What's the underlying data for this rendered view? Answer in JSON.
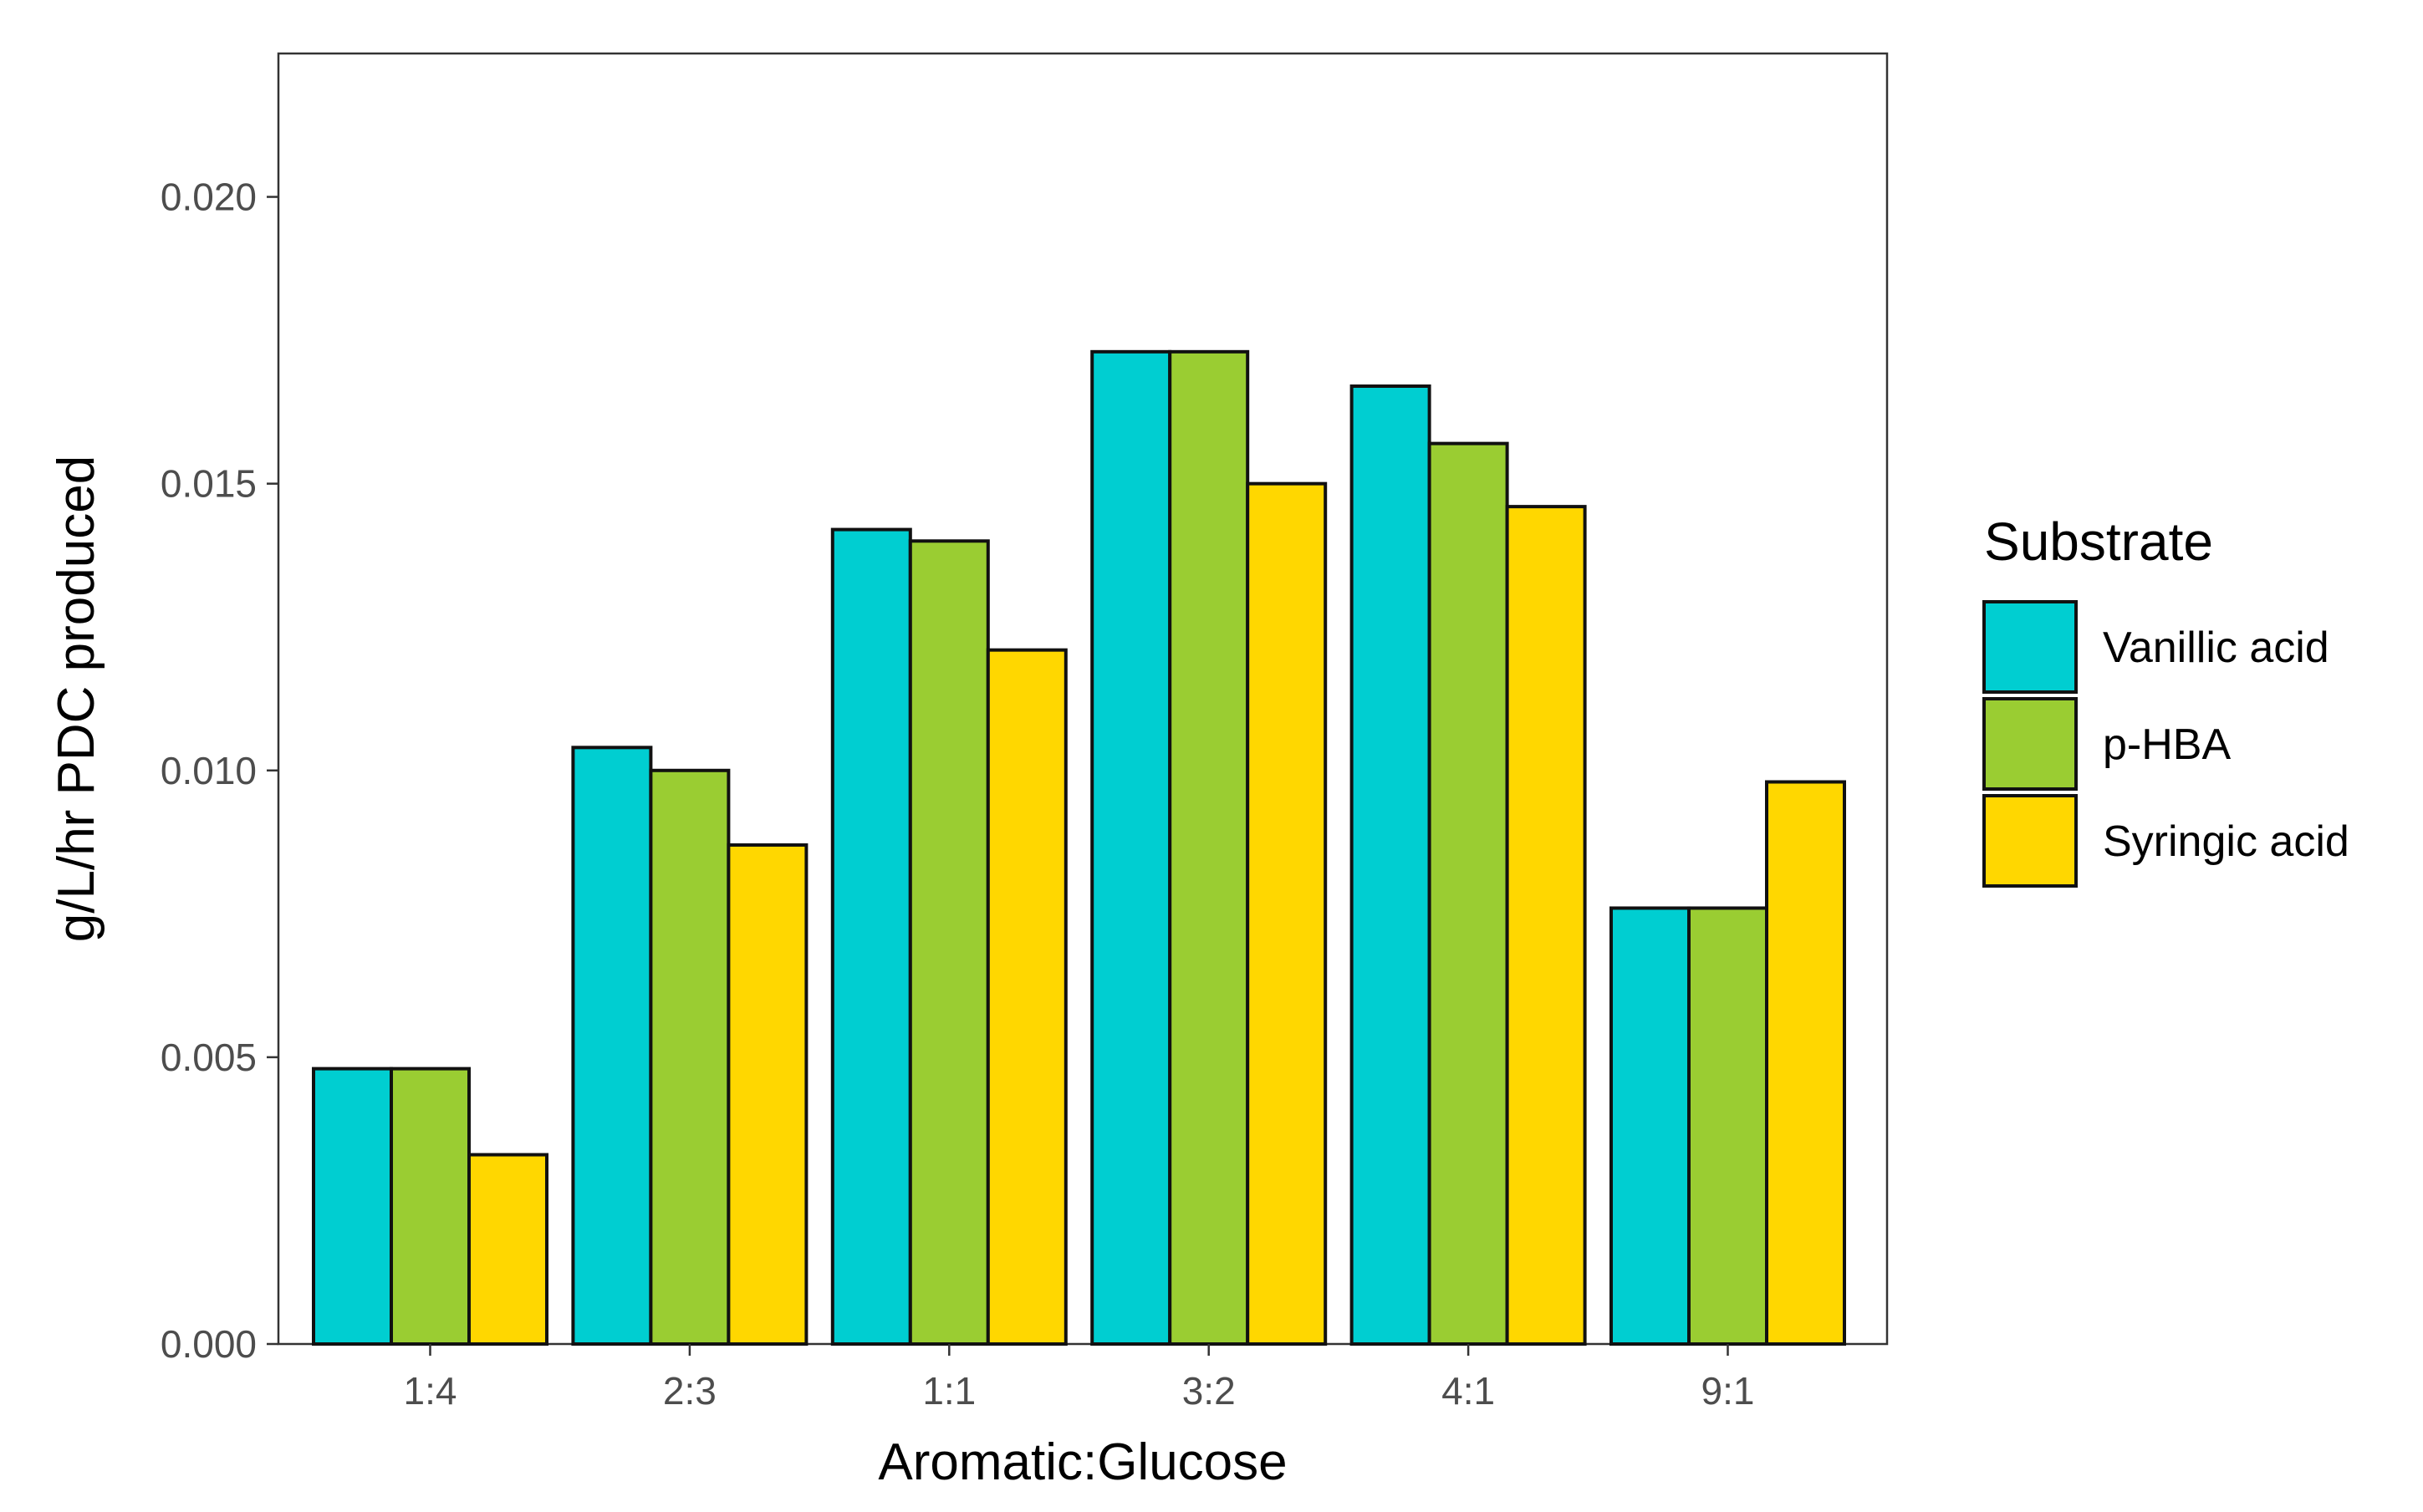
{
  "chart_data": {
    "type": "bar",
    "categories": [
      "1:4",
      "2:3",
      "1:1",
      "3:2",
      "4:1",
      "9:1"
    ],
    "series": [
      {
        "name": "Vanillic acid",
        "color": "#00CED1",
        "values": [
          0.0048,
          0.0104,
          0.0142,
          0.0173,
          0.0167,
          0.0076
        ]
      },
      {
        "name": "p-HBA",
        "color": "#9ACD32",
        "values": [
          0.0048,
          0.01,
          0.014,
          0.0173,
          0.0157,
          0.0076
        ]
      },
      {
        "name": "Syringic acid",
        "color": "#FFD700",
        "values": [
          0.0033,
          0.0087,
          0.0121,
          0.015,
          0.0146,
          0.0098
        ]
      }
    ],
    "yticks": [
      "0.000",
      "0.005",
      "0.010",
      "0.015",
      "0.020"
    ],
    "ylim": [
      0,
      0.0225
    ],
    "xlabel": "Aromatic:Glucose",
    "ylabel": "g/L/hr PDC produced",
    "legend_title": "Substrate",
    "legend_position": "right",
    "grid": false
  }
}
